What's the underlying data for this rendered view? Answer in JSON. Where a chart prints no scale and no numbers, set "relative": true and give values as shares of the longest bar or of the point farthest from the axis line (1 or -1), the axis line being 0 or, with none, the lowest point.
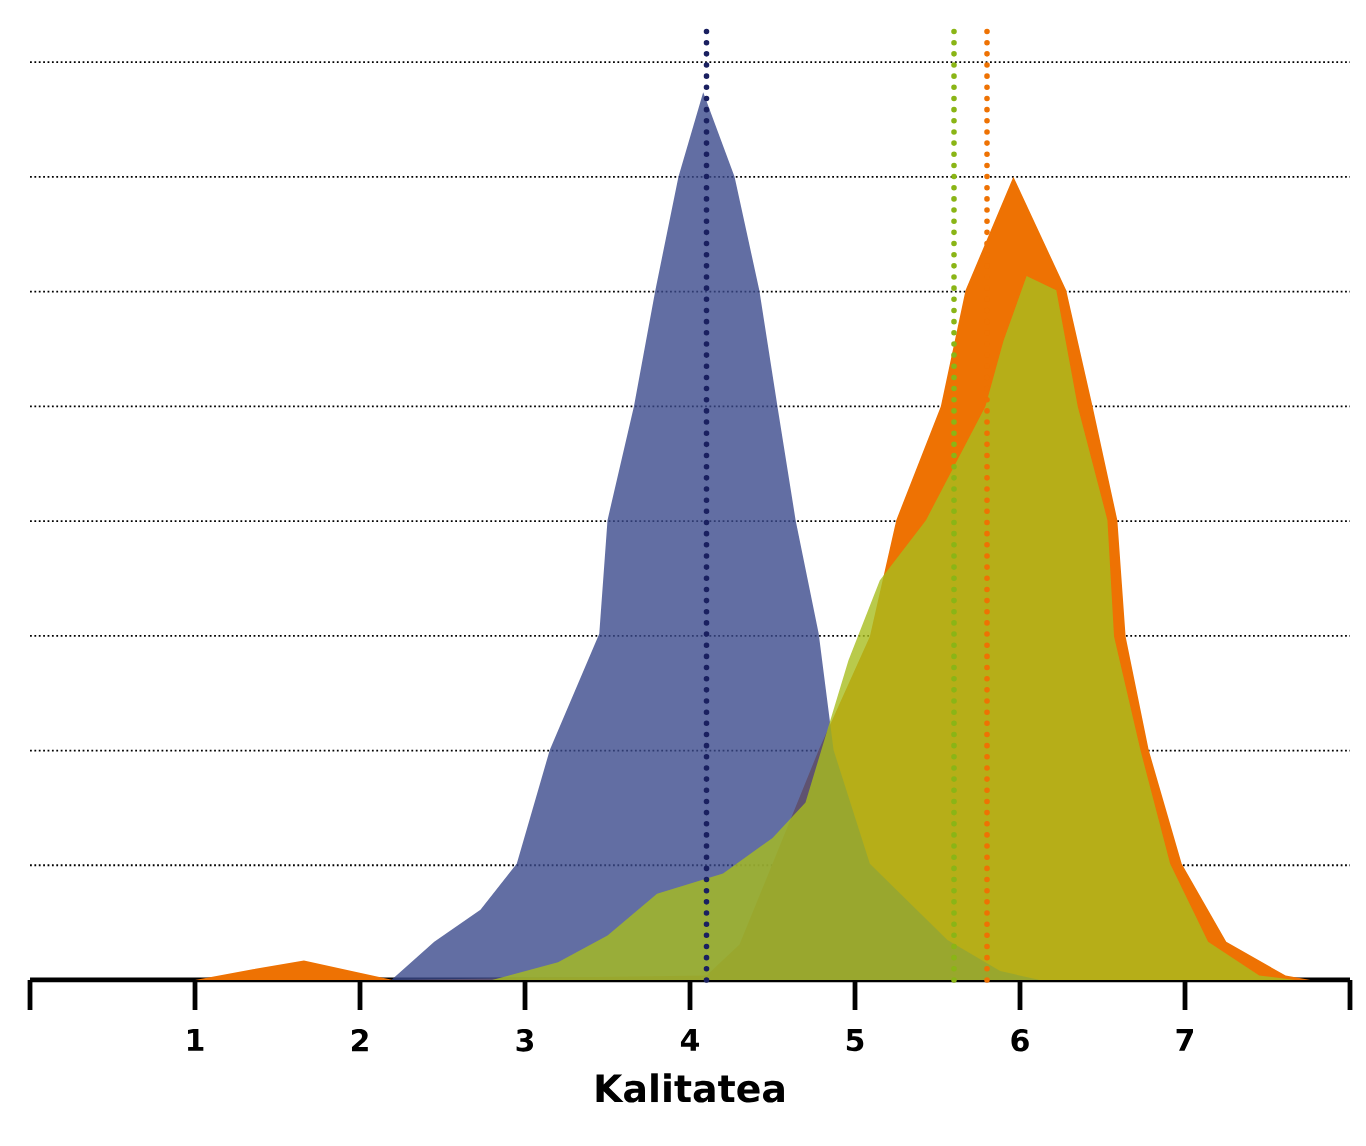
{
  "chart_data": {
    "type": "area",
    "xlabel": "Kalitatea",
    "relative": true,
    "grid": "y",
    "xlim": [
      0,
      8
    ],
    "xticks": [
      {
        "value": 0,
        "label": null
      },
      1,
      2,
      3,
      4,
      5,
      6,
      7,
      {
        "value": 8,
        "label": null
      }
    ],
    "series": [
      {
        "color": "#ee7203",
        "x": [
          1.0,
          1.35,
          1.66,
          1.95,
          2.2,
          4.1,
          4.3,
          4.5,
          4.78,
          5.09,
          5.25,
          5.52,
          5.67,
          5.96,
          6.28,
          6.44,
          6.59,
          6.64,
          6.78,
          6.98,
          7.25,
          7.61,
          7.76
        ],
        "values": [
          0,
          0.012,
          0.022,
          0.01,
          0,
          0.005,
          0.04,
          0.131,
          0.259,
          0.387,
          0.518,
          0.646,
          0.777,
          0.905,
          0.777,
          0.646,
          0.518,
          0.387,
          0.259,
          0.131,
          0.043,
          0.005,
          0
        ]
      },
      {
        "color": "#3b4a8c",
        "x": [
          2.19,
          2.45,
          2.73,
          2.95,
          3.15,
          3.45,
          3.5,
          3.66,
          3.79,
          3.93,
          4.08,
          4.27,
          4.42,
          4.53,
          4.64,
          4.78,
          4.87,
          5.09,
          5.56,
          5.88,
          6.12
        ],
        "values": [
          0,
          0.043,
          0.079,
          0.131,
          0.259,
          0.39,
          0.518,
          0.646,
          0.777,
          0.905,
          1.0,
          0.905,
          0.777,
          0.646,
          0.518,
          0.39,
          0.259,
          0.131,
          0.045,
          0.01,
          0
        ]
      },
      {
        "color": "#a8bd1e",
        "x": [
          2.8,
          3.2,
          3.5,
          3.8,
          4.2,
          4.5,
          4.7,
          4.96,
          5.15,
          5.43,
          5.79,
          5.9,
          6.04,
          6.22,
          6.35,
          6.53,
          6.57,
          6.73,
          6.91,
          7.14,
          7.45,
          7.67
        ],
        "values": [
          0,
          0.02,
          0.05,
          0.097,
          0.12,
          0.16,
          0.2,
          0.36,
          0.45,
          0.518,
          0.646,
          0.72,
          0.793,
          0.777,
          0.646,
          0.518,
          0.387,
          0.259,
          0.131,
          0.043,
          0.005,
          0
        ]
      }
    ],
    "ref_lines": [
      {
        "axis": "x",
        "value": 4.1,
        "color": "#1a2060",
        "line_style": "dotted"
      },
      {
        "axis": "x",
        "value": 5.6,
        "color": "#8ab516",
        "line_style": "dotted"
      },
      {
        "axis": "x",
        "value": 5.8,
        "color": "#ee7203",
        "line_style": "dotted"
      }
    ]
  }
}
